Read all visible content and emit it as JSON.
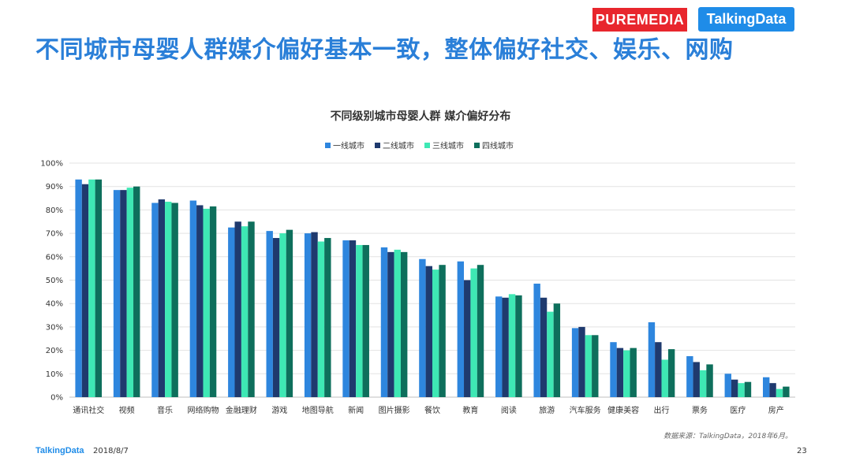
{
  "header": {
    "headline": "不同城市母婴人群媒介偏好基本一致，整体偏好社交、娱乐、网购",
    "logo_puremedia": "PUREMEDIA",
    "logo_talkingdata": "TalkingData"
  },
  "footer": {
    "source": "数据来源：TalkingData，2018年6月。",
    "logo": "TalkingData",
    "date": "2018/8/7",
    "page": "23"
  },
  "chart_data": {
    "type": "bar",
    "title": "不同级别城市母婴人群  媒介偏好分布",
    "legend_position": "top",
    "ylim": [
      0,
      100
    ],
    "y_ticks": [
      "0%",
      "10%",
      "20%",
      "30%",
      "40%",
      "50%",
      "60%",
      "70%",
      "80%",
      "90%",
      "100%"
    ],
    "grid": true,
    "categories": [
      "通讯社交",
      "视频",
      "音乐",
      "网络购物",
      "金融理财",
      "游戏",
      "地图导航",
      "新闻",
      "图片摄影",
      "餐饮",
      "教育",
      "阅读",
      "旅游",
      "汽车服务",
      "健康美容",
      "出行",
      "票务",
      "医疗",
      "房产"
    ],
    "series": [
      {
        "name": "一线城市",
        "color": "#2e86de",
        "values": [
          93,
          88.5,
          83,
          84,
          72.5,
          71,
          70,
          67,
          64,
          59,
          58,
          43,
          48.5,
          29.5,
          23.5,
          32,
          17.5,
          10,
          8.5
        ]
      },
      {
        "name": "二线城市",
        "color": "#1f3a6e",
        "values": [
          91,
          88.5,
          84.5,
          82,
          75,
          68,
          70.5,
          67,
          62,
          56,
          50,
          42.5,
          42.5,
          30,
          21,
          23.5,
          15,
          7.5,
          6
        ]
      },
      {
        "name": "三线城市",
        "color": "#3ee8b4",
        "values": [
          93,
          89.5,
          83.5,
          80.5,
          73,
          70,
          66.5,
          65,
          63,
          54.5,
          55,
          44,
          36.5,
          26.5,
          20,
          16,
          11.5,
          6,
          3.5
        ]
      },
      {
        "name": "四线城市",
        "color": "#0e6f5c",
        "values": [
          93,
          90,
          83,
          81.5,
          75,
          71.5,
          68,
          65,
          62,
          56.5,
          56.5,
          43.5,
          40,
          26.5,
          21,
          20.5,
          14,
          6.5,
          4.5
        ]
      }
    ]
  }
}
